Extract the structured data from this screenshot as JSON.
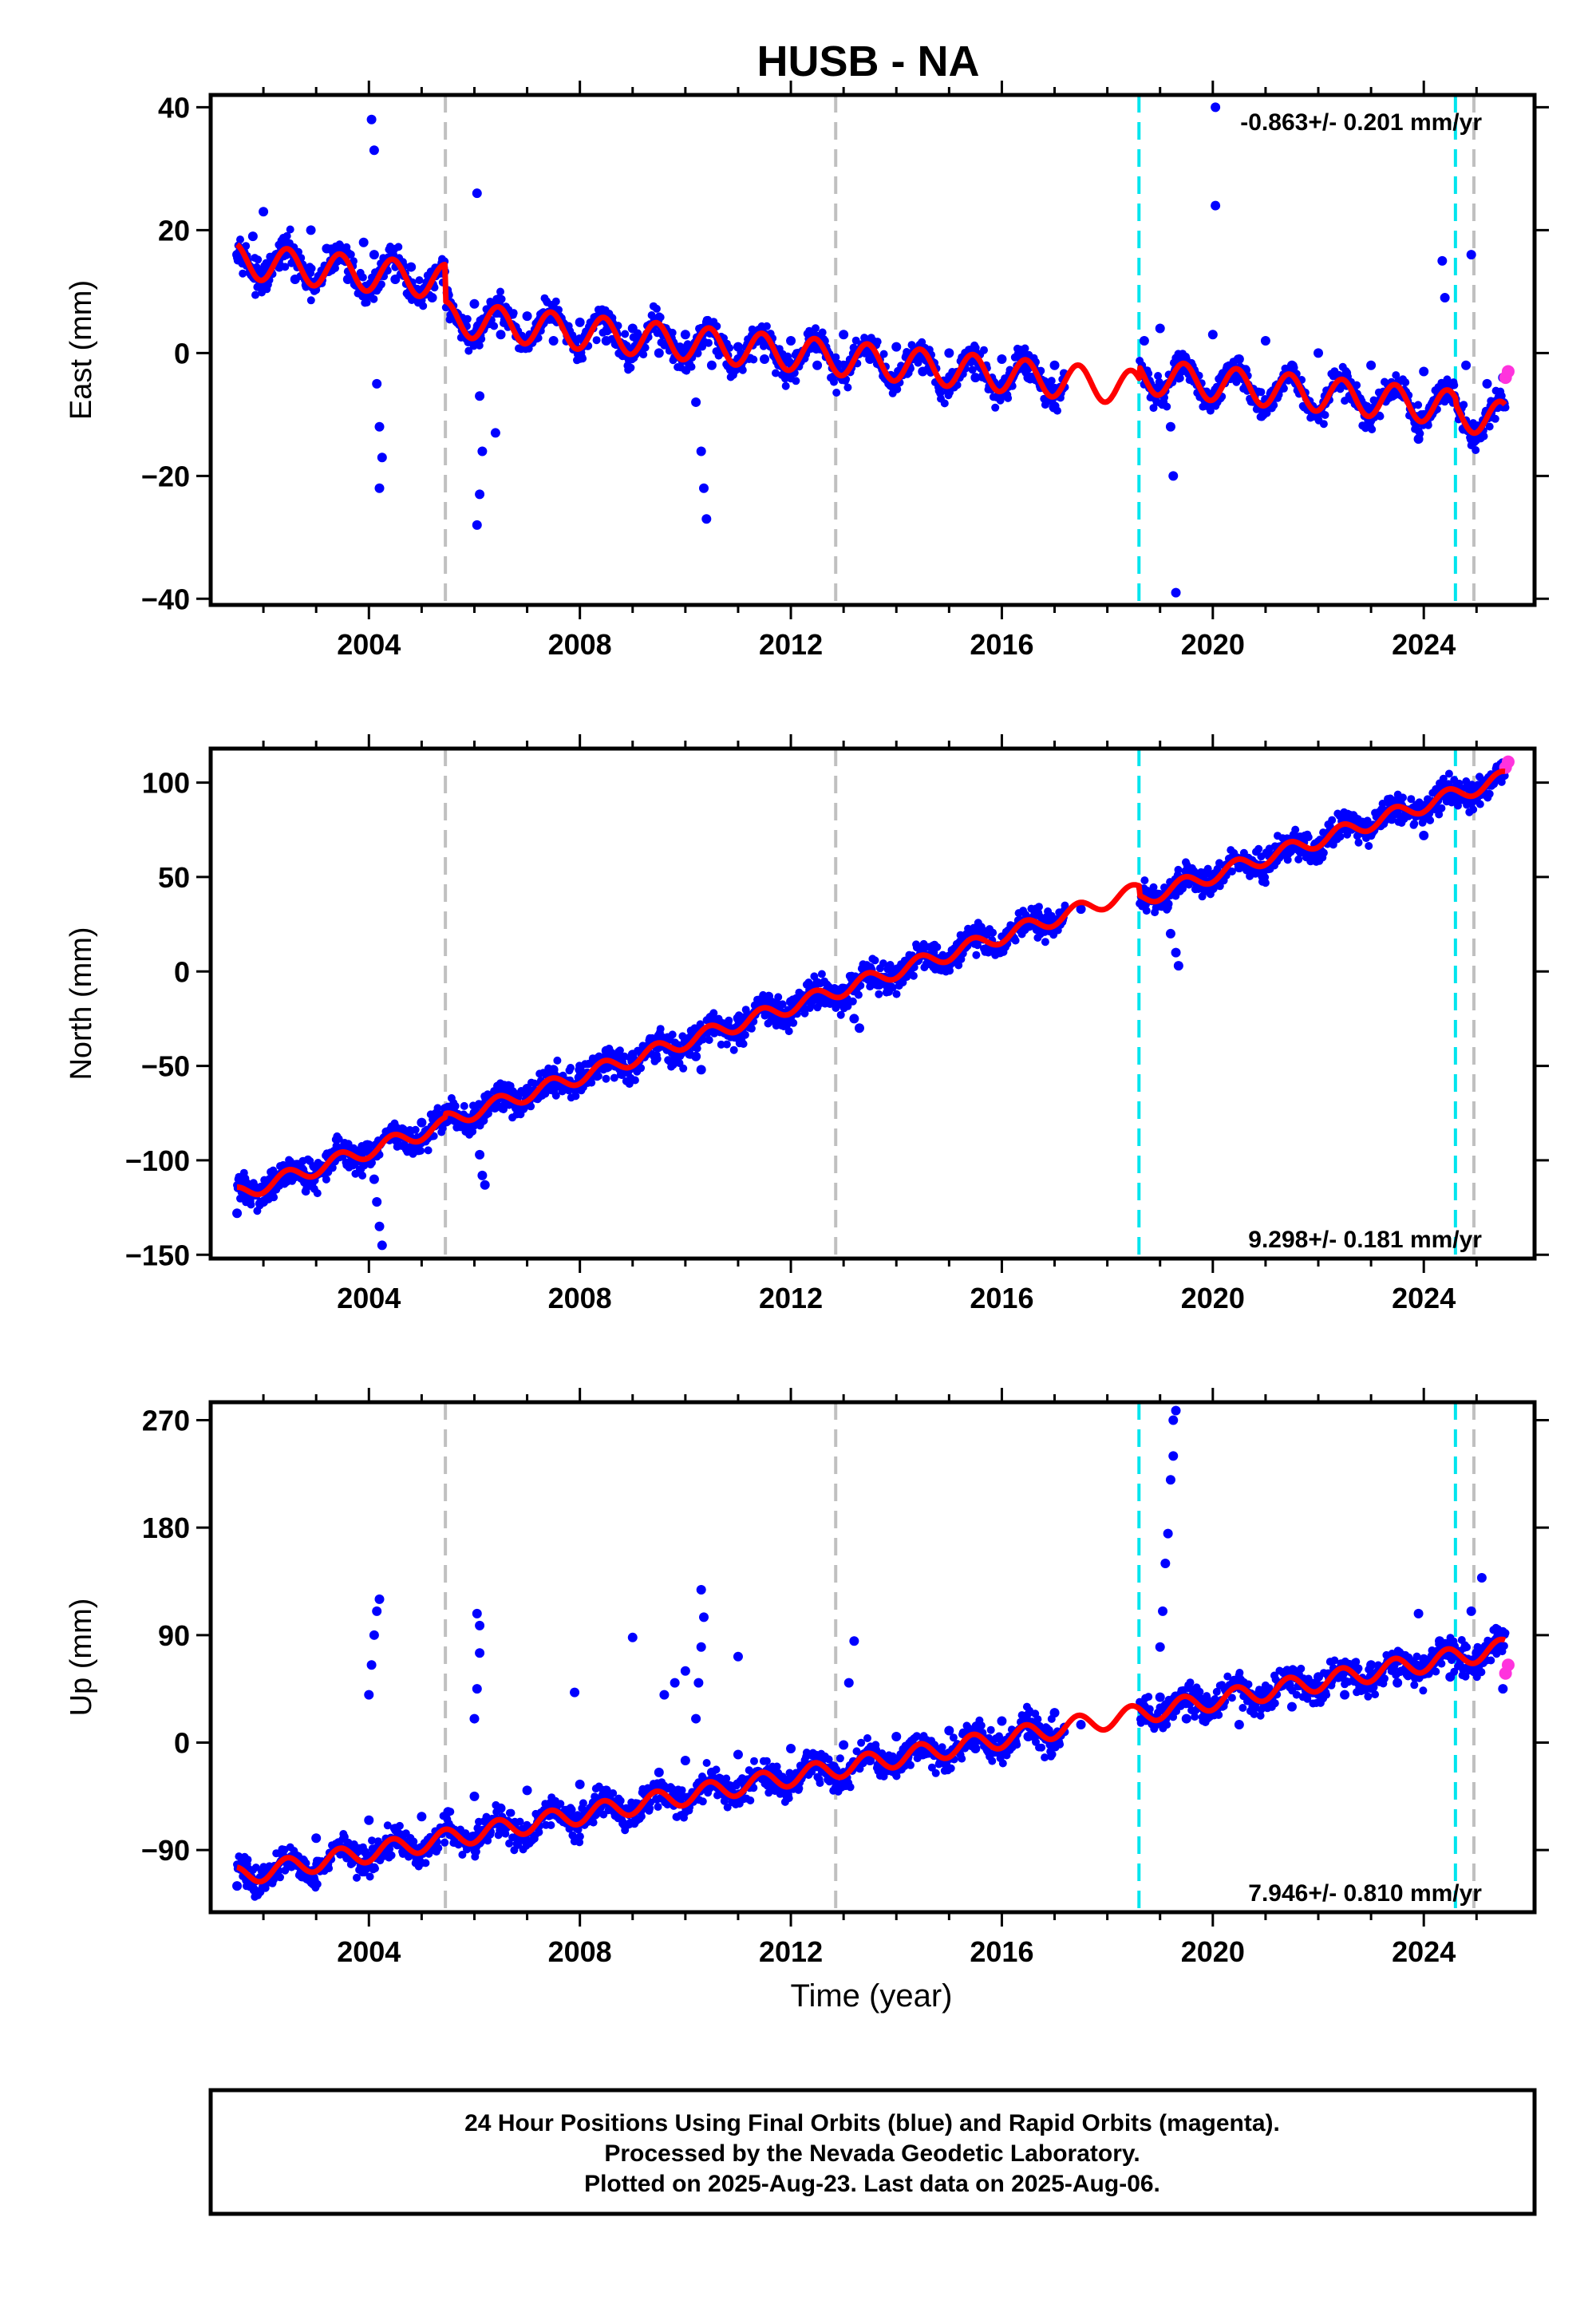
{
  "title": "HUSB - NA",
  "footer": {
    "line1": "24 Hour Positions Using Final Orbits (blue) and Rapid Orbits (magenta).",
    "line2": "Processed by the Nevada Geodetic Laboratory.",
    "line3": "Plotted on 2025-Aug-23. Last data on 2025-Aug-06."
  },
  "colors": {
    "final_orbits": "#0000ff",
    "rapid_orbits": "#ff33dd",
    "model": "#ff0000",
    "equipment_change": "#c0c0c0",
    "earthquake": "#00e5ee"
  },
  "chart_data": [
    {
      "type": "scatter",
      "ylabel": "East (mm)",
      "xlabel": "",
      "xlim": [
        2001.0,
        2026.1
      ],
      "ylim": [
        -41,
        42
      ],
      "xticks": [
        2004,
        2008,
        2012,
        2016,
        2020,
        2024
      ],
      "yticks": [
        -40,
        -20,
        0,
        20,
        40
      ],
      "ytick_labels": [
        "−40",
        "−20",
        "0",
        "20",
        "40"
      ],
      "rate_label": "-0.863+/- 0.201 mm/yr",
      "rate_position": "top-right",
      "gray_lines": [
        2005.45,
        2012.85,
        2024.95
      ],
      "cyan_lines": [
        2018.6,
        2024.6
      ],
      "trend": {
        "t0": 2001.5,
        "y0": 15,
        "rate": -0.863,
        "annual_amp": 2.8,
        "steps": [
          [
            2005.45,
            -6
          ],
          [
            2018.6,
            2
          ],
          [
            2024.6,
            -1
          ]
        ]
      },
      "final_series": [
        {
          "x": 2001.5,
          "y": 16
        },
        {
          "x": 2001.8,
          "y": 19
        },
        {
          "x": 2002.0,
          "y": 23
        },
        {
          "x": 2002.3,
          "y": 14
        },
        {
          "x": 2002.6,
          "y": 12
        },
        {
          "x": 2002.9,
          "y": 20
        },
        {
          "x": 2003.2,
          "y": 17
        },
        {
          "x": 2003.6,
          "y": 12
        },
        {
          "x": 2003.9,
          "y": 18
        },
        {
          "x": 2004.1,
          "y": 16
        },
        {
          "x": 2004.5,
          "y": 12
        },
        {
          "x": 2004.8,
          "y": 14
        },
        {
          "x": 2005.2,
          "y": 9
        },
        {
          "x": 2005.6,
          "y": 6
        },
        {
          "x": 2006.0,
          "y": 8
        },
        {
          "x": 2006.5,
          "y": 3
        },
        {
          "x": 2007.0,
          "y": 6
        },
        {
          "x": 2007.5,
          "y": 2
        },
        {
          "x": 2008.0,
          "y": 5
        },
        {
          "x": 2008.5,
          "y": 2
        },
        {
          "x": 2009.0,
          "y": 4
        },
        {
          "x": 2009.5,
          "y": 0
        },
        {
          "x": 2010.0,
          "y": 3
        },
        {
          "x": 2010.5,
          "y": -2
        },
        {
          "x": 2011.0,
          "y": 1
        },
        {
          "x": 2011.5,
          "y": -1
        },
        {
          "x": 2012.0,
          "y": 2
        },
        {
          "x": 2012.5,
          "y": -2
        },
        {
          "x": 2013.0,
          "y": 3
        },
        {
          "x": 2013.5,
          "y": -1
        },
        {
          "x": 2014.0,
          "y": 1
        },
        {
          "x": 2014.5,
          "y": -3
        },
        {
          "x": 2015.0,
          "y": 0
        },
        {
          "x": 2015.5,
          "y": -4
        },
        {
          "x": 2016.0,
          "y": -1
        },
        {
          "x": 2016.5,
          "y": -4
        },
        {
          "x": 2017.0,
          "y": -2
        },
        {
          "x": 2018.7,
          "y": 2
        },
        {
          "x": 2019.0,
          "y": 4
        },
        {
          "x": 2019.5,
          "y": -2
        },
        {
          "x": 2020.0,
          "y": 3
        },
        {
          "x": 2020.5,
          "y": -1
        },
        {
          "x": 2021.0,
          "y": 2
        },
        {
          "x": 2021.5,
          "y": -2
        },
        {
          "x": 2022.0,
          "y": 0
        },
        {
          "x": 2022.5,
          "y": -4
        },
        {
          "x": 2023.0,
          "y": -2
        },
        {
          "x": 2023.5,
          "y": -6
        },
        {
          "x": 2024.0,
          "y": -3
        },
        {
          "x": 2024.4,
          "y": -7
        },
        {
          "x": 2024.8,
          "y": -2
        },
        {
          "x": 2025.2,
          "y": -5
        },
        {
          "x": 2025.5,
          "y": -4
        }
      ],
      "outliers": [
        {
          "x": 2004.05,
          "y": 38
        },
        {
          "x": 2004.1,
          "y": 33
        },
        {
          "x": 2004.15,
          "y": -5
        },
        {
          "x": 2004.2,
          "y": -12
        },
        {
          "x": 2004.25,
          "y": -17
        },
        {
          "x": 2004.2,
          "y": -22
        },
        {
          "x": 2006.05,
          "y": 26
        },
        {
          "x": 2006.1,
          "y": -7
        },
        {
          "x": 2006.15,
          "y": -16
        },
        {
          "x": 2006.1,
          "y": -23
        },
        {
          "x": 2006.05,
          "y": -28
        },
        {
          "x": 2006.4,
          "y": -13
        },
        {
          "x": 2010.2,
          "y": -8
        },
        {
          "x": 2010.3,
          "y": -16
        },
        {
          "x": 2010.35,
          "y": -22
        },
        {
          "x": 2010.4,
          "y": -27
        },
        {
          "x": 2019.15,
          "y": -5
        },
        {
          "x": 2019.2,
          "y": -12
        },
        {
          "x": 2019.25,
          "y": -20
        },
        {
          "x": 2019.3,
          "y": -39
        },
        {
          "x": 2020.05,
          "y": 40
        },
        {
          "x": 2020.05,
          "y": 24
        },
        {
          "x": 2024.35,
          "y": 15
        },
        {
          "x": 2024.4,
          "y": 9
        },
        {
          "x": 2023.9,
          "y": -14
        },
        {
          "x": 2024.9,
          "y": 16
        }
      ],
      "rapid_series": [
        {
          "x": 2025.55,
          "y": -4
        },
        {
          "x": 2025.6,
          "y": -3
        }
      ]
    },
    {
      "type": "scatter",
      "ylabel": "North (mm)",
      "xlabel": "",
      "xlim": [
        2001.0,
        2026.1
      ],
      "ylim": [
        -152,
        118
      ],
      "xticks": [
        2004,
        2008,
        2012,
        2016,
        2020,
        2024
      ],
      "yticks": [
        -150,
        -100,
        -50,
        0,
        50,
        100
      ],
      "ytick_labels": [
        "−150",
        "−100",
        "−50",
        "0",
        "50",
        "100"
      ],
      "rate_label": "9.298+/- 0.181 mm/yr",
      "rate_position": "bottom-right",
      "gray_lines": [
        2005.45,
        2012.85,
        2024.95
      ],
      "cyan_lines": [
        2018.6,
        2024.6
      ],
      "trend": {
        "t0": 2001.5,
        "y0": -118,
        "rate": 9.298,
        "annual_amp": 4,
        "steps": [
          [
            2005.45,
            2
          ],
          [
            2018.6,
            -5
          ],
          [
            2024.6,
            0
          ]
        ]
      },
      "final_series": [
        {
          "x": 2001.5,
          "y": -128
        },
        {
          "x": 2002.0,
          "y": -122
        },
        {
          "x": 2002.5,
          "y": -108
        },
        {
          "x": 2003.0,
          "y": -104
        },
        {
          "x": 2003.5,
          "y": -95
        },
        {
          "x": 2004.0,
          "y": -92
        },
        {
          "x": 2004.5,
          "y": -85
        },
        {
          "x": 2005.0,
          "y": -80
        },
        {
          "x": 2005.5,
          "y": -72
        },
        {
          "x": 2006.0,
          "y": -75
        },
        {
          "x": 2006.5,
          "y": -62
        },
        {
          "x": 2007.0,
          "y": -62
        },
        {
          "x": 2007.5,
          "y": -52
        },
        {
          "x": 2008.0,
          "y": -52
        },
        {
          "x": 2008.5,
          "y": -42
        },
        {
          "x": 2009.0,
          "y": -44
        },
        {
          "x": 2009.5,
          "y": -34
        },
        {
          "x": 2010.0,
          "y": -37
        },
        {
          "x": 2010.5,
          "y": -24
        },
        {
          "x": 2011.0,
          "y": -25
        },
        {
          "x": 2011.5,
          "y": -15
        },
        {
          "x": 2012.0,
          "y": -16
        },
        {
          "x": 2012.5,
          "y": -6
        },
        {
          "x": 2013.0,
          "y": -9
        },
        {
          "x": 2013.5,
          "y": 2
        },
        {
          "x": 2014.0,
          "y": 1
        },
        {
          "x": 2014.5,
          "y": 10
        },
        {
          "x": 2015.0,
          "y": 7
        },
        {
          "x": 2015.5,
          "y": 17
        },
        {
          "x": 2016.0,
          "y": 13
        },
        {
          "x": 2016.5,
          "y": 24
        },
        {
          "x": 2017.0,
          "y": 23
        },
        {
          "x": 2017.5,
          "y": 33
        },
        {
          "x": 2018.7,
          "y": 40
        },
        {
          "x": 2019.0,
          "y": 38
        },
        {
          "x": 2019.5,
          "y": 48
        },
        {
          "x": 2020.0,
          "y": 44
        },
        {
          "x": 2020.5,
          "y": 55
        },
        {
          "x": 2021.0,
          "y": 55
        },
        {
          "x": 2021.5,
          "y": 66
        },
        {
          "x": 2022.0,
          "y": 62
        },
        {
          "x": 2022.5,
          "y": 76
        },
        {
          "x": 2023.0,
          "y": 74
        },
        {
          "x": 2023.5,
          "y": 86
        },
        {
          "x": 2024.0,
          "y": 84
        },
        {
          "x": 2024.5,
          "y": 97
        },
        {
          "x": 2025.0,
          "y": 92
        },
        {
          "x": 2025.5,
          "y": 106
        }
      ],
      "outliers": [
        {
          "x": 2004.1,
          "y": -110
        },
        {
          "x": 2004.15,
          "y": -122
        },
        {
          "x": 2004.2,
          "y": -135
        },
        {
          "x": 2004.25,
          "y": -145
        },
        {
          "x": 2006.1,
          "y": -97
        },
        {
          "x": 2006.15,
          "y": -108
        },
        {
          "x": 2006.2,
          "y": -113
        },
        {
          "x": 2010.2,
          "y": -45
        },
        {
          "x": 2010.3,
          "y": -52
        },
        {
          "x": 2013.3,
          "y": -30
        },
        {
          "x": 2013.2,
          "y": -25
        },
        {
          "x": 2019.2,
          "y": 20
        },
        {
          "x": 2019.3,
          "y": 10
        },
        {
          "x": 2019.35,
          "y": 3
        },
        {
          "x": 2024.0,
          "y": 72
        }
      ],
      "rapid_series": [
        {
          "x": 2025.55,
          "y": 108
        },
        {
          "x": 2025.6,
          "y": 111
        }
      ]
    },
    {
      "type": "scatter",
      "ylabel": "Up (mm)",
      "xlabel": "Time (year)",
      "xlim": [
        2001.0,
        2026.1
      ],
      "ylim": [
        -142,
        285
      ],
      "xticks": [
        2004,
        2008,
        2012,
        2016,
        2020,
        2024
      ],
      "yticks": [
        -90,
        0,
        90,
        180,
        270
      ],
      "ytick_labels": [
        "−90",
        "0",
        "90",
        "180",
        "270"
      ],
      "rate_label": "7.946+/- 0.810 mm/yr",
      "rate_position": "bottom-right",
      "gray_lines": [
        2005.45,
        2012.85,
        2024.95
      ],
      "cyan_lines": [
        2018.6,
        2024.6
      ],
      "trend": {
        "t0": 2001.5,
        "y0": -112,
        "rate": 7.946,
        "annual_amp": 8,
        "steps": [
          [
            2005.45,
            0
          ],
          [
            2018.6,
            0
          ],
          [
            2024.6,
            0
          ]
        ]
      },
      "final_series": [
        {
          "x": 2001.5,
          "y": -120
        },
        {
          "x": 2002.0,
          "y": -110
        },
        {
          "x": 2002.5,
          "y": -100
        },
        {
          "x": 2003.0,
          "y": -80
        },
        {
          "x": 2003.5,
          "y": -88
        },
        {
          "x": 2004.0,
          "y": -65
        },
        {
          "x": 2004.5,
          "y": -72
        },
        {
          "x": 2005.0,
          "y": -62
        },
        {
          "x": 2005.5,
          "y": -58
        },
        {
          "x": 2006.0,
          "y": -45
        },
        {
          "x": 2006.5,
          "y": -55
        },
        {
          "x": 2007.0,
          "y": -40
        },
        {
          "x": 2007.5,
          "y": -50
        },
        {
          "x": 2008.0,
          "y": -35
        },
        {
          "x": 2008.5,
          "y": -40
        },
        {
          "x": 2009.5,
          "y": -25
        },
        {
          "x": 2010.0,
          "y": -15
        },
        {
          "x": 2010.5,
          "y": -25
        },
        {
          "x": 2011.0,
          "y": -10
        },
        {
          "x": 2011.5,
          "y": -28
        },
        {
          "x": 2012.0,
          "y": -5
        },
        {
          "x": 2012.5,
          "y": -20
        },
        {
          "x": 2013.0,
          "y": -2
        },
        {
          "x": 2013.5,
          "y": -15
        },
        {
          "x": 2014.0,
          "y": 5
        },
        {
          "x": 2014.5,
          "y": -10
        },
        {
          "x": 2015.0,
          "y": 10
        },
        {
          "x": 2015.5,
          "y": -5
        },
        {
          "x": 2016.0,
          "y": 18
        },
        {
          "x": 2016.5,
          "y": 5
        },
        {
          "x": 2017.0,
          "y": 25
        },
        {
          "x": 2017.5,
          "y": 15
        },
        {
          "x": 2018.7,
          "y": 30
        },
        {
          "x": 2019.0,
          "y": 38
        },
        {
          "x": 2019.5,
          "y": 20
        },
        {
          "x": 2020.0,
          "y": 30
        },
        {
          "x": 2020.5,
          "y": 15
        },
        {
          "x": 2021.0,
          "y": 45
        },
        {
          "x": 2021.5,
          "y": 30
        },
        {
          "x": 2022.0,
          "y": 55
        },
        {
          "x": 2022.5,
          "y": 40
        },
        {
          "x": 2023.0,
          "y": 65
        },
        {
          "x": 2023.5,
          "y": 50
        },
        {
          "x": 2024.0,
          "y": 70
        },
        {
          "x": 2024.5,
          "y": 55
        },
        {
          "x": 2025.0,
          "y": 75
        },
        {
          "x": 2025.5,
          "y": 45
        }
      ],
      "outliers": [
        {
          "x": 2004.0,
          "y": 40
        },
        {
          "x": 2004.05,
          "y": 65
        },
        {
          "x": 2004.1,
          "y": 90
        },
        {
          "x": 2004.15,
          "y": 110
        },
        {
          "x": 2004.2,
          "y": 120
        },
        {
          "x": 2006.0,
          "y": 20
        },
        {
          "x": 2006.05,
          "y": 45
        },
        {
          "x": 2006.1,
          "y": 75
        },
        {
          "x": 2006.1,
          "y": 98
        },
        {
          "x": 2006.05,
          "y": 108
        },
        {
          "x": 2007.9,
          "y": 42
        },
        {
          "x": 2009.0,
          "y": 88
        },
        {
          "x": 2009.6,
          "y": 40
        },
        {
          "x": 2009.8,
          "y": 50
        },
        {
          "x": 2010.0,
          "y": 60
        },
        {
          "x": 2010.2,
          "y": 20
        },
        {
          "x": 2010.25,
          "y": 50
        },
        {
          "x": 2010.3,
          "y": 80
        },
        {
          "x": 2010.35,
          "y": 105
        },
        {
          "x": 2010.3,
          "y": 128
        },
        {
          "x": 2011.0,
          "y": 72
        },
        {
          "x": 2013.1,
          "y": 50
        },
        {
          "x": 2013.2,
          "y": 85
        },
        {
          "x": 2019.0,
          "y": 80
        },
        {
          "x": 2019.05,
          "y": 110
        },
        {
          "x": 2019.1,
          "y": 150
        },
        {
          "x": 2019.15,
          "y": 175
        },
        {
          "x": 2019.2,
          "y": 220
        },
        {
          "x": 2019.25,
          "y": 240
        },
        {
          "x": 2019.25,
          "y": 270
        },
        {
          "x": 2019.3,
          "y": 278
        },
        {
          "x": 2023.9,
          "y": 108
        },
        {
          "x": 2024.3,
          "y": 85
        },
        {
          "x": 2024.9,
          "y": 110
        },
        {
          "x": 2025.1,
          "y": 138
        }
      ],
      "rapid_series": [
        {
          "x": 2025.55,
          "y": 58
        },
        {
          "x": 2025.6,
          "y": 65
        }
      ]
    }
  ]
}
